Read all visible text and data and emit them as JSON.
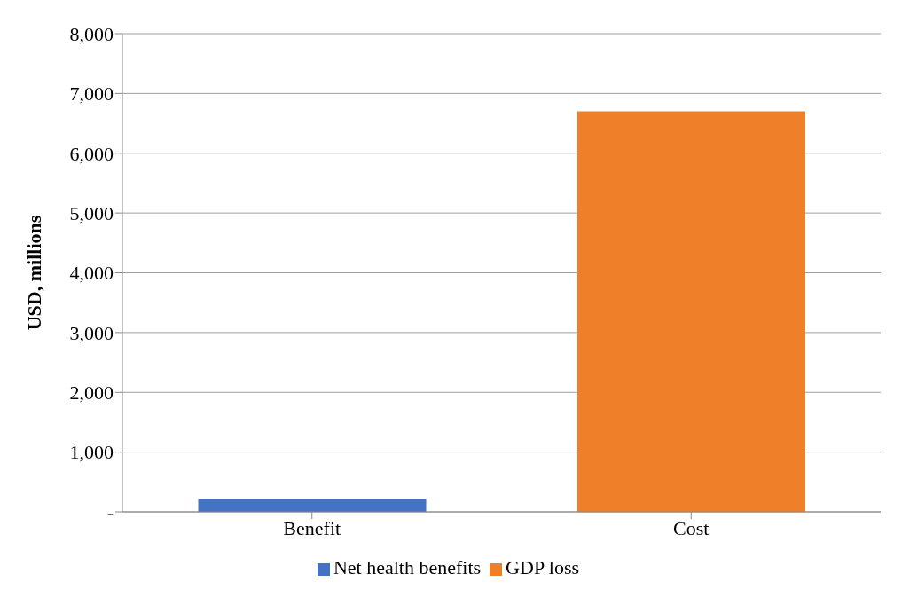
{
  "chart_data": {
    "type": "bar",
    "categories": [
      "Benefit",
      "Cost"
    ],
    "ylabel": "USD, millions",
    "stacked": true,
    "series": [
      {
        "name": "Net health benefits",
        "color": "#4472c4",
        "values": [
          220,
          null
        ]
      },
      {
        "name": "GDP loss",
        "color": "#f07f2a",
        "values": [
          null,
          6700
        ]
      }
    ],
    "ylim": [
      0,
      8000
    ],
    "yticks": [
      {
        "value": 0,
        "label": "-"
      },
      {
        "value": 1000,
        "label": "1,000"
      },
      {
        "value": 2000,
        "label": "2,000"
      },
      {
        "value": 3000,
        "label": "3,000"
      },
      {
        "value": 4000,
        "label": "4,000"
      },
      {
        "value": 5000,
        "label": "5,000"
      },
      {
        "value": 6000,
        "label": "6,000"
      },
      {
        "value": 7000,
        "label": "7,000"
      },
      {
        "value": 8000,
        "label": "8,000"
      }
    ],
    "grid": "y",
    "legend": "bottom"
  }
}
